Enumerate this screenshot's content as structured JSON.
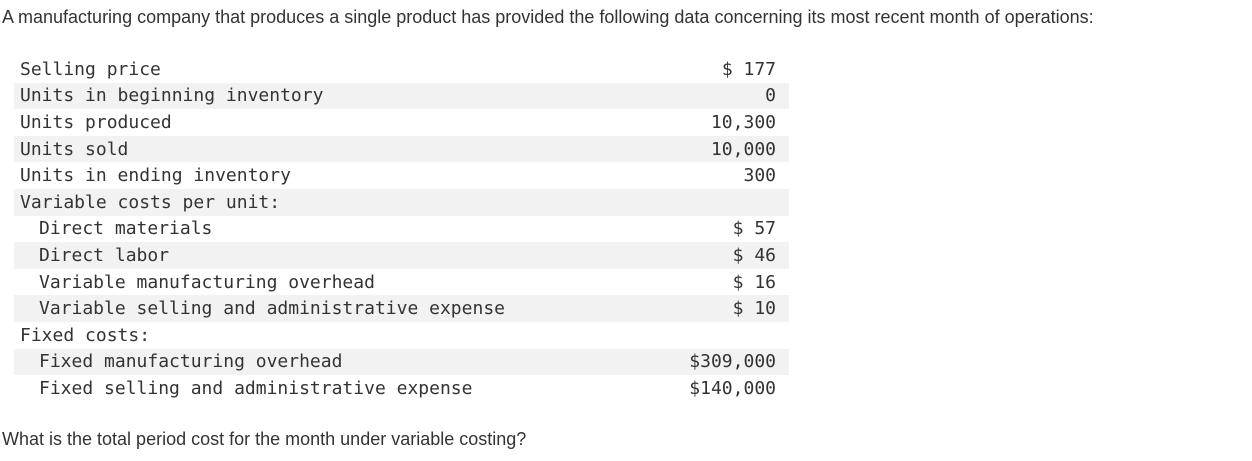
{
  "intro": "A manufacturing company that produces a single product has provided the following data concerning its most recent month of operations:",
  "rows": [
    {
      "label": "Selling price",
      "value": "$ 177"
    },
    {
      "label": "Units in beginning inventory",
      "value": "0"
    },
    {
      "label": "Units produced",
      "value": "10,300"
    },
    {
      "label": "Units sold",
      "value": "10,000"
    },
    {
      "label": "Units in ending inventory",
      "value": "300"
    },
    {
      "label": "Variable costs per unit:",
      "value": ""
    },
    {
      "label": "Direct materials",
      "value": "$ 57"
    },
    {
      "label": "Direct labor",
      "value": "$ 46"
    },
    {
      "label": "Variable manufacturing overhead",
      "value": "$ 16"
    },
    {
      "label": "Variable selling and administrative expense",
      "value": "$ 10"
    },
    {
      "label": "Fixed costs:",
      "value": ""
    },
    {
      "label": "Fixed manufacturing overhead",
      "value": "$309,000"
    },
    {
      "label": "Fixed selling and administrative expense",
      "value": "$140,000"
    }
  ],
  "question": "What is the total period cost for the month under variable costing?"
}
